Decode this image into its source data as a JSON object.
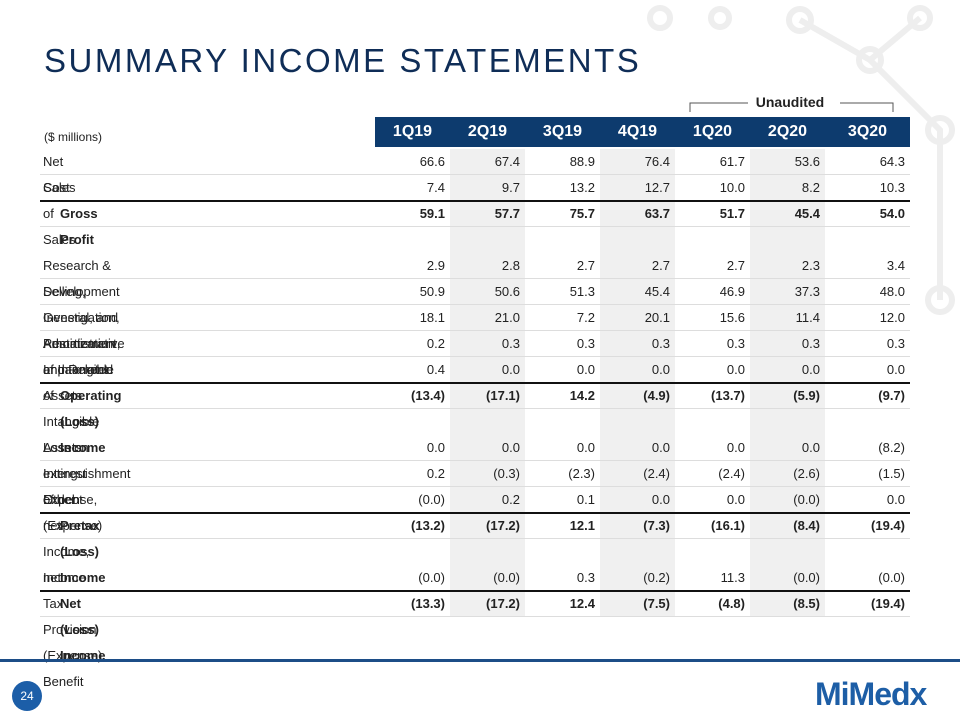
{
  "header": {
    "title": "SUMMARY INCOME STATEMENTS",
    "unaudited": "Unaudited",
    "units": "($ millions)",
    "columns": [
      "1Q19",
      "2Q19",
      "3Q19",
      "4Q19",
      "1Q20",
      "2Q20",
      "3Q20"
    ]
  },
  "table": {
    "rows": [
      {
        "label": "Net Sales",
        "values": [
          "66.6",
          "67.4",
          "88.9",
          "76.4",
          "61.7",
          "53.6",
          "64.3"
        ]
      },
      {
        "label": "Cost of Sales",
        "values": [
          "7.4",
          "9.7",
          "13.2",
          "12.7",
          "10.0",
          "8.2",
          "10.3"
        ]
      },
      {
        "label": "Gross Profit",
        "bold": true,
        "values": [
          "59.1",
          "57.7",
          "75.7",
          "63.7",
          "51.7",
          "45.4",
          "54.0"
        ]
      },
      {
        "label": "Research & Development",
        "values": [
          "2.9",
          "2.8",
          "2.7",
          "2.7",
          "2.7",
          "2.3",
          "3.4"
        ]
      },
      {
        "label": "Selling, General, and Administrative",
        "values": [
          "50.9",
          "50.6",
          "51.3",
          "45.4",
          "46.9",
          "37.3",
          "48.0"
        ]
      },
      {
        "label": "Investigation, Restatement, and Related",
        "values": [
          "18.1",
          "21.0",
          "7.2",
          "20.1",
          "15.6",
          "11.4",
          "12.0"
        ]
      },
      {
        "label": "Amortization of Intangible Assets",
        "values": [
          "0.2",
          "0.3",
          "0.3",
          "0.3",
          "0.3",
          "0.3",
          "0.3"
        ]
      },
      {
        "label": "Impairment of Intangible Assets",
        "values": [
          "0.4",
          "0.0",
          "0.0",
          "0.0",
          "0.0",
          "0.0",
          "0.0"
        ]
      },
      {
        "label": "Operating (Loss) Income",
        "bold": true,
        "values": [
          "(13.4)",
          "(17.1)",
          "14.2",
          "(4.9)",
          "(13.7)",
          "(5.9)",
          "(9.7)"
        ]
      },
      {
        "label": "Loss on extinguishment of debt",
        "values": [
          "0.0",
          "0.0",
          "0.0",
          "0.0",
          "0.0",
          "0.0",
          "(8.2)"
        ]
      },
      {
        "label": "Interest Expense, net",
        "values": [
          "0.2",
          "(0.3)",
          "(2.3)",
          "(2.4)",
          "(2.4)",
          "(2.6)",
          "(1.5)"
        ]
      },
      {
        "label": "Other (Expense) Income, net",
        "values": [
          "(0.0)",
          "0.2",
          "0.1",
          "0.0",
          "0.0",
          "(0.0)",
          "0.0"
        ]
      },
      {
        "label": "Pretax (Loss) Income",
        "bold": true,
        "values": [
          "(13.2)",
          "(17.2)",
          "12.1",
          "(7.3)",
          "(16.1)",
          "(8.4)",
          "(19.4)"
        ]
      },
      {
        "label": "Income Tax Provision (Expense) Benefit",
        "values": [
          "(0.0)",
          "(0.0)",
          "0.3",
          "(0.2)",
          "11.3",
          "(0.0)",
          "(0.0)"
        ]
      },
      {
        "label": "Net (Loss) Income",
        "bold": true,
        "values": [
          "(13.3)",
          "(17.2)",
          "12.4",
          "(7.5)",
          "(4.8)",
          "(8.5)",
          "(19.4)"
        ]
      }
    ]
  },
  "footer": {
    "page": "24",
    "logo": "MiMedx"
  }
}
